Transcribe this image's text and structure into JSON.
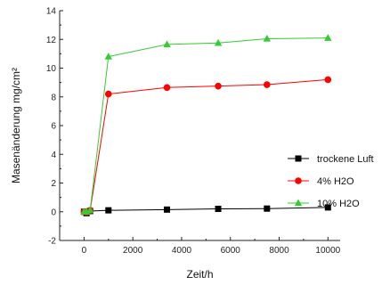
{
  "chart_data": {
    "type": "line",
    "xlabel": "Zeit/h",
    "ylabel": "Masenänderung mg/cm²",
    "xlim": [
      -1000,
      10500
    ],
    "ylim": [
      -2,
      14
    ],
    "x_ticks": [
      0,
      2000,
      4000,
      6000,
      8000,
      10000
    ],
    "y_ticks": [
      -2,
      0,
      2,
      4,
      6,
      8,
      10,
      12,
      14
    ],
    "grid": false,
    "legend_position": "right",
    "series": [
      {
        "name": "trockene Luft",
        "color": "#000000",
        "marker": "square",
        "x": [
          0,
          100,
          250,
          1000,
          3400,
          5500,
          7500,
          10000
        ],
        "y": [
          0,
          -0.1,
          0.05,
          0.1,
          0.15,
          0.2,
          0.22,
          0.3
        ]
      },
      {
        "name": "4% H2O",
        "color": "#ff0000",
        "marker": "circle",
        "x": [
          0,
          100,
          250,
          1000,
          3400,
          5500,
          7500,
          10000
        ],
        "y": [
          0,
          -0.05,
          0.1,
          8.2,
          8.65,
          8.75,
          8.85,
          9.2
        ]
      },
      {
        "name": "10% H2O",
        "color": "#33cc33",
        "marker": "triangle",
        "x": [
          0,
          100,
          250,
          1000,
          3400,
          5500,
          7500,
          10000
        ],
        "y": [
          0,
          0,
          0.1,
          10.8,
          11.65,
          11.75,
          12.05,
          12.1
        ]
      }
    ]
  }
}
